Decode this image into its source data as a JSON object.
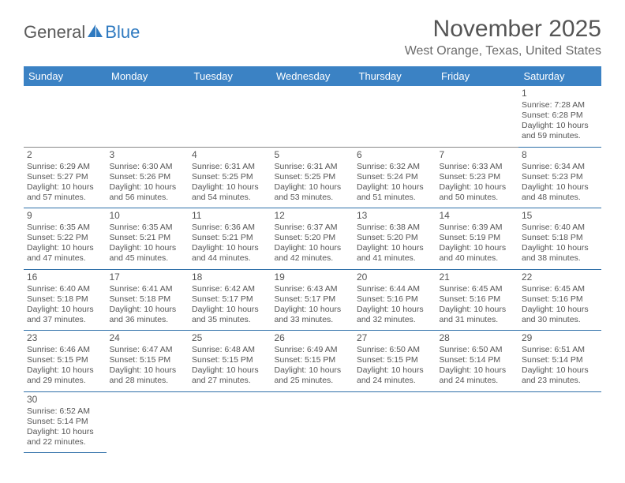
{
  "logo": {
    "general": "General",
    "blue": "Blue"
  },
  "title": "November 2025",
  "location": "West Orange, Texas, United States",
  "header_color": "#3b82c4",
  "border_color": "#2e6fa8",
  "text_color": "#555555",
  "day_headers": [
    "Sunday",
    "Monday",
    "Tuesday",
    "Wednesday",
    "Thursday",
    "Friday",
    "Saturday"
  ],
  "weeks": [
    [
      null,
      null,
      null,
      null,
      null,
      null,
      {
        "n": "1",
        "sr": "Sunrise: 7:28 AM",
        "ss": "Sunset: 6:28 PM",
        "dl": "Daylight: 10 hours and 59 minutes."
      }
    ],
    [
      {
        "n": "2",
        "sr": "Sunrise: 6:29 AM",
        "ss": "Sunset: 5:27 PM",
        "dl": "Daylight: 10 hours and 57 minutes."
      },
      {
        "n": "3",
        "sr": "Sunrise: 6:30 AM",
        "ss": "Sunset: 5:26 PM",
        "dl": "Daylight: 10 hours and 56 minutes."
      },
      {
        "n": "4",
        "sr": "Sunrise: 6:31 AM",
        "ss": "Sunset: 5:25 PM",
        "dl": "Daylight: 10 hours and 54 minutes."
      },
      {
        "n": "5",
        "sr": "Sunrise: 6:31 AM",
        "ss": "Sunset: 5:25 PM",
        "dl": "Daylight: 10 hours and 53 minutes."
      },
      {
        "n": "6",
        "sr": "Sunrise: 6:32 AM",
        "ss": "Sunset: 5:24 PM",
        "dl": "Daylight: 10 hours and 51 minutes."
      },
      {
        "n": "7",
        "sr": "Sunrise: 6:33 AM",
        "ss": "Sunset: 5:23 PM",
        "dl": "Daylight: 10 hours and 50 minutes."
      },
      {
        "n": "8",
        "sr": "Sunrise: 6:34 AM",
        "ss": "Sunset: 5:23 PM",
        "dl": "Daylight: 10 hours and 48 minutes."
      }
    ],
    [
      {
        "n": "9",
        "sr": "Sunrise: 6:35 AM",
        "ss": "Sunset: 5:22 PM",
        "dl": "Daylight: 10 hours and 47 minutes."
      },
      {
        "n": "10",
        "sr": "Sunrise: 6:35 AM",
        "ss": "Sunset: 5:21 PM",
        "dl": "Daylight: 10 hours and 45 minutes."
      },
      {
        "n": "11",
        "sr": "Sunrise: 6:36 AM",
        "ss": "Sunset: 5:21 PM",
        "dl": "Daylight: 10 hours and 44 minutes."
      },
      {
        "n": "12",
        "sr": "Sunrise: 6:37 AM",
        "ss": "Sunset: 5:20 PM",
        "dl": "Daylight: 10 hours and 42 minutes."
      },
      {
        "n": "13",
        "sr": "Sunrise: 6:38 AM",
        "ss": "Sunset: 5:20 PM",
        "dl": "Daylight: 10 hours and 41 minutes."
      },
      {
        "n": "14",
        "sr": "Sunrise: 6:39 AM",
        "ss": "Sunset: 5:19 PM",
        "dl": "Daylight: 10 hours and 40 minutes."
      },
      {
        "n": "15",
        "sr": "Sunrise: 6:40 AM",
        "ss": "Sunset: 5:18 PM",
        "dl": "Daylight: 10 hours and 38 minutes."
      }
    ],
    [
      {
        "n": "16",
        "sr": "Sunrise: 6:40 AM",
        "ss": "Sunset: 5:18 PM",
        "dl": "Daylight: 10 hours and 37 minutes."
      },
      {
        "n": "17",
        "sr": "Sunrise: 6:41 AM",
        "ss": "Sunset: 5:18 PM",
        "dl": "Daylight: 10 hours and 36 minutes."
      },
      {
        "n": "18",
        "sr": "Sunrise: 6:42 AM",
        "ss": "Sunset: 5:17 PM",
        "dl": "Daylight: 10 hours and 35 minutes."
      },
      {
        "n": "19",
        "sr": "Sunrise: 6:43 AM",
        "ss": "Sunset: 5:17 PM",
        "dl": "Daylight: 10 hours and 33 minutes."
      },
      {
        "n": "20",
        "sr": "Sunrise: 6:44 AM",
        "ss": "Sunset: 5:16 PM",
        "dl": "Daylight: 10 hours and 32 minutes."
      },
      {
        "n": "21",
        "sr": "Sunrise: 6:45 AM",
        "ss": "Sunset: 5:16 PM",
        "dl": "Daylight: 10 hours and 31 minutes."
      },
      {
        "n": "22",
        "sr": "Sunrise: 6:45 AM",
        "ss": "Sunset: 5:16 PM",
        "dl": "Daylight: 10 hours and 30 minutes."
      }
    ],
    [
      {
        "n": "23",
        "sr": "Sunrise: 6:46 AM",
        "ss": "Sunset: 5:15 PM",
        "dl": "Daylight: 10 hours and 29 minutes."
      },
      {
        "n": "24",
        "sr": "Sunrise: 6:47 AM",
        "ss": "Sunset: 5:15 PM",
        "dl": "Daylight: 10 hours and 28 minutes."
      },
      {
        "n": "25",
        "sr": "Sunrise: 6:48 AM",
        "ss": "Sunset: 5:15 PM",
        "dl": "Daylight: 10 hours and 27 minutes."
      },
      {
        "n": "26",
        "sr": "Sunrise: 6:49 AM",
        "ss": "Sunset: 5:15 PM",
        "dl": "Daylight: 10 hours and 25 minutes."
      },
      {
        "n": "27",
        "sr": "Sunrise: 6:50 AM",
        "ss": "Sunset: 5:15 PM",
        "dl": "Daylight: 10 hours and 24 minutes."
      },
      {
        "n": "28",
        "sr": "Sunrise: 6:50 AM",
        "ss": "Sunset: 5:14 PM",
        "dl": "Daylight: 10 hours and 24 minutes."
      },
      {
        "n": "29",
        "sr": "Sunrise: 6:51 AM",
        "ss": "Sunset: 5:14 PM",
        "dl": "Daylight: 10 hours and 23 minutes."
      }
    ],
    [
      {
        "n": "30",
        "sr": "Sunrise: 6:52 AM",
        "ss": "Sunset: 5:14 PM",
        "dl": "Daylight: 10 hours and 22 minutes."
      },
      null,
      null,
      null,
      null,
      null,
      null
    ]
  ]
}
